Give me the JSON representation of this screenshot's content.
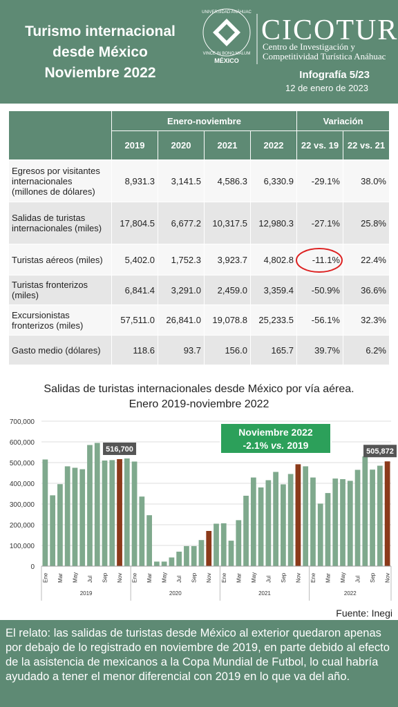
{
  "header": {
    "title": [
      "Turismo internacional",
      "desde México",
      "Noviembre 2022"
    ],
    "logo": {
      "ring_top": "UNIVERSIDAD ANÁHUAC",
      "ring_bottom": "VINCE IN BONO MALUM",
      "place": "MÉXICO",
      "brand": "CICOTUR",
      "tagline": [
        "Centro de Investigación y",
        "Competitividad Turística Anáhuac"
      ]
    },
    "issue": "Infografía 5/23",
    "date": "12 de enero de 2023"
  },
  "table": {
    "groups": [
      "Enero-noviembre",
      "Variación"
    ],
    "columns": [
      "2019",
      "2020",
      "2021",
      "2022",
      "22 vs. 19",
      "22 vs. 21"
    ],
    "rows": [
      {
        "label": "Egresos por visitantes internacionales (millones de dólares)",
        "values": [
          "8,931.3",
          "3,141.5",
          "4,586.3",
          "6,330.9",
          "-29.1%",
          "38.0%"
        ]
      },
      {
        "label": "Salidas de turistas internacionales (miles)",
        "values": [
          "17,804.5",
          "6,677.2",
          "10,317.5",
          "12,980.3",
          "-27.1%",
          "25.8%"
        ]
      },
      {
        "label": "Turistas aéreos (miles)",
        "values": [
          "5,402.0",
          "1,752.3",
          "3,923.7",
          "4,802.8",
          "-11.1%",
          "22.4%"
        ]
      },
      {
        "label": "Turistas fronterizos (miles)",
        "values": [
          "6,841.4",
          "3,291.0",
          "2,459.0",
          "3,359.4",
          "-50.9%",
          "36.6%"
        ]
      },
      {
        "label": "Excursionistas fronterizos (miles)",
        "values": [
          "57,511.0",
          "26,841.0",
          "19,078.8",
          "25,233.5",
          "-56.1%",
          "32.3%"
        ]
      },
      {
        "label": "Gasto medio (dólares)",
        "values": [
          "118.6",
          "93.7",
          "156.0",
          "165.7",
          "39.7%",
          "6.2%"
        ]
      }
    ]
  },
  "chart_data": {
    "type": "bar",
    "title": "Salidas de turistas internacionales desde México por vía aérea. Enero 2019-noviembre 2022",
    "categories": [
      "Ene",
      null,
      "Mar",
      null,
      "May",
      null,
      "Jul",
      null,
      "Sep",
      null,
      "Nov",
      null,
      "Ene",
      null,
      "Mar",
      null,
      "May",
      null,
      "Jul",
      null,
      "Sep",
      null,
      "Nov",
      null,
      "Ene",
      null,
      "Mar",
      null,
      "May",
      null,
      "Jul",
      null,
      "Sep",
      null,
      "Nov",
      null,
      "Ene",
      null,
      "Mar",
      null,
      "May",
      null,
      "Jul",
      null,
      "Sep",
      null,
      "Nov"
    ],
    "groups": [
      "2019",
      "2020",
      "2021",
      "2022"
    ],
    "values": [
      515000,
      342000,
      396000,
      482000,
      475000,
      468000,
      585000,
      595000,
      510000,
      512000,
      516700,
      520000,
      505000,
      336000,
      246000,
      22000,
      22000,
      42000,
      70000,
      97000,
      97000,
      126000,
      170000,
      205000,
      207000,
      123000,
      222000,
      340000,
      428000,
      380000,
      415000,
      455000,
      395000,
      445000,
      492000,
      482000,
      428000,
      302000,
      353000,
      423000,
      420000,
      412000,
      465000,
      530000,
      466000,
      485000,
      505872
    ],
    "colors": [
      "#7fa98d",
      "#7fa98d",
      "#7fa98d",
      "#7fa98d",
      "#7fa98d",
      "#7fa98d",
      "#7fa98d",
      "#7fa98d",
      "#7fa98d",
      "#7fa98d",
      "#8b3a1a",
      "#7fa98d",
      "#7fa98d",
      "#7fa98d",
      "#7fa98d",
      "#7fa98d",
      "#7fa98d",
      "#7fa98d",
      "#7fa98d",
      "#7fa98d",
      "#7fa98d",
      "#7fa98d",
      "#8b3a1a",
      "#7fa98d",
      "#7fa98d",
      "#7fa98d",
      "#7fa98d",
      "#7fa98d",
      "#7fa98d",
      "#7fa98d",
      "#7fa98d",
      "#7fa98d",
      "#7fa98d",
      "#7fa98d",
      "#8b3a1a",
      "#7fa98d",
      "#7fa98d",
      "#7fa98d",
      "#7fa98d",
      "#7fa98d",
      "#7fa98d",
      "#7fa98d",
      "#7fa98d",
      "#7fa98d",
      "#7fa98d",
      "#7fa98d",
      "#8b3a1a"
    ],
    "value_labels": [
      null,
      null,
      null,
      null,
      null,
      null,
      null,
      null,
      null,
      null,
      "516,700",
      null,
      null,
      null,
      null,
      null,
      null,
      null,
      null,
      null,
      null,
      null,
      null,
      null,
      null,
      null,
      null,
      null,
      null,
      null,
      null,
      null,
      null,
      null,
      null,
      null,
      null,
      null,
      null,
      null,
      null,
      null,
      null,
      null,
      null,
      null,
      "505,872"
    ],
    "annotation": {
      "title": "Noviembre 2022",
      "text": [
        "-2.1%",
        "vs.",
        "2019"
      ]
    },
    "ylim": [
      0,
      700000
    ],
    "yticks": [
      0,
      {
        "value": 100000,
        "label": "100,000"
      },
      {
        "value": 200000,
        "label": "200,000"
      },
      {
        "value": 300000,
        "label": "300,000"
      },
      {
        "value": 400000,
        "label": "400,000"
      },
      {
        "value": 500000,
        "label": "500,000"
      },
      {
        "value": 600000,
        "label": "600,000"
      },
      {
        "value": 700000,
        "label": "700,000"
      }
    ],
    "grid": true
  },
  "source": "Fuente: Inegi",
  "story": "El relato: las salidas de turistas desde México al exterior quedaron apenas por debajo de lo registrado en noviembre de 2019, en parte debido al efecto de la asistencia de mexicanos a la Copa Mundial de Futbol, lo cual habría ayudado a tener el menor diferencial con 2019 en lo que va del año."
}
